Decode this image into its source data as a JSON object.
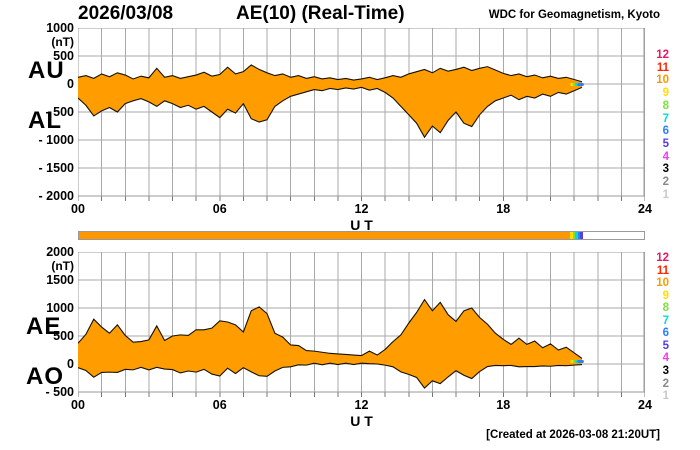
{
  "header": {
    "date": "2026/03/08",
    "title": "AE(10) (Real-Time)",
    "credit": "WDC for Geomagnetism, Kyoto"
  },
  "footer": {
    "created": "[Created at 2026-03-08 21:20UT]"
  },
  "colors": {
    "fill": "#ff9d00",
    "curve": "#151000",
    "grid": "#a8a8a8",
    "frame": "#9a9a9a",
    "tick": "#777777"
  },
  "station_legend": {
    "values": [
      12,
      11,
      10,
      9,
      8,
      7,
      6,
      5,
      4,
      3,
      2,
      1
    ],
    "colors": {
      "12": "#e61860",
      "11": "#ff2600",
      "10": "#ff9800",
      "9": "#ffdf00",
      "8": "#7de23e",
      "7": "#00ddd4",
      "6": "#2a7fff",
      "5": "#5340e0",
      "4": "#ee3cee",
      "3": "#000000",
      "2": "#8a8a8a",
      "1": "#c9c9c9"
    }
  },
  "availability_bar": {
    "range_hours": [
      0,
      24
    ],
    "segments": [
      {
        "from": 0,
        "to": 20.85,
        "count": 10
      },
      {
        "from": 20.85,
        "to": 20.98,
        "count": 9
      },
      {
        "from": 20.98,
        "to": 21.08,
        "count": 8
      },
      {
        "from": 21.08,
        "to": 21.18,
        "count": 7
      },
      {
        "from": 21.18,
        "to": 21.3,
        "count": 6
      },
      {
        "from": 21.3,
        "to": 21.42,
        "count": 5
      }
    ]
  },
  "chart_data": [
    {
      "type": "area",
      "name": "AU / AL indices",
      "unit": "(nT)",
      "xlabel": "U T",
      "ylim": [
        -2000,
        1000
      ],
      "xlim_hours": [
        0,
        24
      ],
      "grid": true,
      "yticks": [
        {
          "v": 1000,
          "label": "1000"
        },
        {
          "v": 500,
          "label": "500"
        },
        {
          "v": 0,
          "label": "0"
        },
        {
          "v": -500,
          "label": "- 500"
        },
        {
          "v": -1000,
          "label": "- 1000"
        },
        {
          "v": -1500,
          "label": "- 1500"
        },
        {
          "v": -2000,
          "label": "- 2000"
        }
      ],
      "xticks": [
        {
          "h": 0,
          "label": "00"
        },
        {
          "h": 6,
          "label": "06"
        },
        {
          "h": 12,
          "label": "12"
        },
        {
          "h": 18,
          "label": "18"
        },
        {
          "h": 24,
          "label": "24"
        }
      ],
      "x_step_hours": 0.33333,
      "series": [
        {
          "name": "AU",
          "values": [
            120,
            150,
            100,
            180,
            130,
            200,
            160,
            90,
            140,
            110,
            280,
            120,
            150,
            100,
            130,
            160,
            210,
            140,
            170,
            300,
            180,
            220,
            340,
            260,
            200,
            150,
            180,
            120,
            150,
            100,
            130,
            90,
            110,
            80,
            100,
            70,
            90,
            120,
            80,
            110,
            150,
            120,
            180,
            220,
            260,
            200,
            280,
            230,
            260,
            300,
            240,
            280,
            310,
            250,
            190,
            150,
            180,
            130,
            160,
            110,
            140,
            100,
            120,
            80,
            40
          ]
        },
        {
          "name": "AL",
          "values": [
            -250,
            -380,
            -570,
            -480,
            -420,
            -500,
            -350,
            -300,
            -260,
            -320,
            -400,
            -300,
            -350,
            -420,
            -380,
            -450,
            -400,
            -500,
            -600,
            -450,
            -520,
            -350,
            -620,
            -680,
            -640,
            -400,
            -300,
            -220,
            -180,
            -140,
            -100,
            -120,
            -80,
            -100,
            -70,
            -90,
            -60,
            -110,
            -80,
            -150,
            -250,
            -400,
            -550,
            -700,
            -950,
            -750,
            -870,
            -650,
            -500,
            -700,
            -760,
            -550,
            -400,
            -300,
            -250,
            -200,
            -280,
            -220,
            -250,
            -180,
            -220,
            -150,
            -180,
            -120,
            -60
          ]
        }
      ],
      "tail": {
        "y": -10,
        "segments": [
          {
            "from": 20.9,
            "to": 21.0,
            "count": 9
          },
          {
            "from": 21.0,
            "to": 21.1,
            "count": 8
          },
          {
            "from": 21.1,
            "to": 21.2,
            "count": 7
          },
          {
            "from": 21.2,
            "to": 21.35,
            "count": 6
          }
        ]
      }
    },
    {
      "type": "area",
      "name": "AE / AO indices",
      "unit": "(nT)",
      "xlabel": "U T",
      "ylim": [
        -500,
        2000
      ],
      "xlim_hours": [
        0,
        24
      ],
      "grid": true,
      "yticks": [
        {
          "v": 2000,
          "label": "2000"
        },
        {
          "v": 1500,
          "label": "1500"
        },
        {
          "v": 1000,
          "label": "1000"
        },
        {
          "v": 500,
          "label": "500"
        },
        {
          "v": 0,
          "label": "0"
        },
        {
          "v": -500,
          "label": "- 500"
        }
      ],
      "xticks": [
        {
          "h": 0,
          "label": "00"
        },
        {
          "h": 6,
          "label": "06"
        },
        {
          "h": 12,
          "label": "12"
        },
        {
          "h": 18,
          "label": "18"
        },
        {
          "h": 24,
          "label": "24"
        }
      ],
      "x_step_hours": 0.33333,
      "series": [
        {
          "name": "AE",
          "values": [
            370,
            530,
            800,
            660,
            550,
            700,
            510,
            390,
            400,
            430,
            680,
            420,
            500,
            520,
            510,
            610,
            610,
            640,
            770,
            750,
            700,
            570,
            950,
            1020,
            900,
            550,
            480,
            340,
            330,
            240,
            230,
            210,
            190,
            180,
            170,
            160,
            150,
            230,
            160,
            260,
            400,
            520,
            730,
            920,
            1150,
            950,
            1100,
            880,
            760,
            950,
            1000,
            830,
            710,
            550,
            440,
            350,
            460,
            350,
            410,
            290,
            360,
            250,
            300,
            200,
            100
          ]
        },
        {
          "name": "AO",
          "values": [
            -65,
            -115,
            -235,
            -150,
            -145,
            -150,
            -95,
            -105,
            -60,
            -105,
            -60,
            -90,
            -100,
            -160,
            -125,
            -145,
            -95,
            -180,
            -215,
            -75,
            -170,
            -65,
            -140,
            -210,
            -220,
            -125,
            -60,
            -50,
            -15,
            -20,
            15,
            -15,
            15,
            -10,
            15,
            -10,
            15,
            5,
            0,
            -20,
            -50,
            -140,
            -185,
            -240,
            -430,
            -300,
            -350,
            -230,
            -120,
            -200,
            -260,
            -135,
            -45,
            -25,
            -30,
            -25,
            -50,
            -45,
            -45,
            -35,
            -40,
            -25,
            -30,
            -20,
            -10
          ]
        }
      ],
      "tail": {
        "y": 45,
        "segments": [
          {
            "from": 20.9,
            "to": 21.0,
            "count": 9
          },
          {
            "from": 21.0,
            "to": 21.1,
            "count": 8
          },
          {
            "from": 21.1,
            "to": 21.2,
            "count": 7
          },
          {
            "from": 21.2,
            "to": 21.35,
            "count": 6
          }
        ]
      }
    }
  ]
}
